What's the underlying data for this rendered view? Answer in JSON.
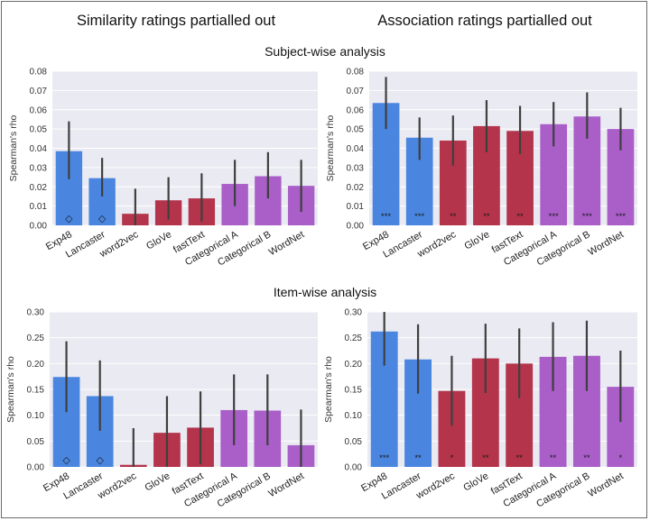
{
  "headers": {
    "col_left": "Similarity ratings partialled out",
    "col_right": "Association ratings partialled out",
    "row_top": "Subject-wise analysis",
    "row_bottom": "Item-wise analysis"
  },
  "colors": {
    "blue": "#4a86e0",
    "red": "#b3344b",
    "purple": "#a95ec8",
    "panel_bg": "#eaeaf2",
    "grid": "#ffffff",
    "errorbar": "#3f3f3f"
  },
  "chart_data": [
    {
      "id": "subject-similarity",
      "type": "bar",
      "ylabel": "Spearman's rho",
      "ylim": [
        0,
        0.08
      ],
      "yticks": [
        "0.00",
        "0.01",
        "0.02",
        "0.03",
        "0.04",
        "0.05",
        "0.06",
        "0.07",
        "0.08"
      ],
      "categories": [
        "Exp48",
        "Lancaster",
        "word2vec",
        "GloVe",
        "fastText",
        "Categorical A",
        "Categorical B",
        "WordNet"
      ],
      "groups": [
        "blue",
        "blue",
        "red",
        "red",
        "red",
        "purple",
        "purple",
        "purple"
      ],
      "values": [
        0.0385,
        0.0245,
        0.006,
        0.013,
        0.014,
        0.0215,
        0.0255,
        0.0205
      ],
      "ci_low": [
        0.024,
        0.015,
        -0.002,
        0.003,
        0.002,
        0.01,
        0.014,
        0.007
      ],
      "ci_high": [
        0.054,
        0.035,
        0.019,
        0.025,
        0.027,
        0.034,
        0.038,
        0.034
      ],
      "markers": [
        "◇",
        "◇",
        "",
        "",
        "",
        "",
        "",
        ""
      ],
      "grid": true
    },
    {
      "id": "subject-association",
      "type": "bar",
      "ylabel": "Spearman's rho",
      "ylim": [
        0,
        0.08
      ],
      "yticks": [
        "0.00",
        "0.01",
        "0.02",
        "0.03",
        "0.04",
        "0.05",
        "0.06",
        "0.07",
        "0.08"
      ],
      "categories": [
        "Exp48",
        "Lancaster",
        "word2vec",
        "GloVe",
        "fastText",
        "Categorical A",
        "Categorical B",
        "WordNet"
      ],
      "groups": [
        "blue",
        "blue",
        "red",
        "red",
        "red",
        "purple",
        "purple",
        "purple"
      ],
      "values": [
        0.0635,
        0.0455,
        0.044,
        0.0515,
        0.049,
        0.0525,
        0.0565,
        0.05
      ],
      "ci_low": [
        0.05,
        0.034,
        0.031,
        0.038,
        0.037,
        0.041,
        0.045,
        0.039
      ],
      "ci_high": [
        0.077,
        0.056,
        0.057,
        0.065,
        0.062,
        0.064,
        0.069,
        0.061
      ],
      "markers": [
        "***",
        "***",
        "**",
        "**",
        "**",
        "***",
        "***",
        "***"
      ],
      "grid": true
    },
    {
      "id": "item-similarity",
      "type": "bar",
      "ylabel": "Spearman's rho",
      "ylim": [
        0,
        0.3
      ],
      "yticks": [
        "0.00",
        "0.05",
        "0.10",
        "0.15",
        "0.20",
        "0.25",
        "0.30"
      ],
      "categories": [
        "Exp48",
        "Lancaster",
        "word2vec",
        "GloVe",
        "fastText",
        "Categorical A",
        "Categorical B",
        "WordNet"
      ],
      "groups": [
        "blue",
        "blue",
        "red",
        "red",
        "red",
        "purple",
        "purple",
        "purple"
      ],
      "values": [
        0.174,
        0.137,
        0.004,
        0.066,
        0.076,
        0.11,
        0.109,
        0.042
      ],
      "ci_low": [
        0.106,
        0.07,
        -0.04,
        -0.005,
        0.005,
        0.042,
        0.042,
        -0.01
      ],
      "ci_high": [
        0.243,
        0.206,
        0.075,
        0.137,
        0.146,
        0.179,
        0.179,
        0.111
      ],
      "markers": [
        "◇",
        "◇",
        "",
        "",
        "",
        "",
        "",
        ""
      ],
      "grid": true
    },
    {
      "id": "item-association",
      "type": "bar",
      "ylabel": "Spearman's rho",
      "ylim": [
        0,
        0.3
      ],
      "yticks": [
        "0.00",
        "0.05",
        "0.10",
        "0.15",
        "0.20",
        "0.25",
        "0.30"
      ],
      "categories": [
        "Exp48",
        "Lancaster",
        "word2vec",
        "GloVe",
        "fastText",
        "Categorical A",
        "Categorical B",
        "WordNet"
      ],
      "groups": [
        "blue",
        "blue",
        "red",
        "red",
        "red",
        "purple",
        "purple",
        "purple"
      ],
      "values": [
        0.262,
        0.208,
        0.147,
        0.21,
        0.2,
        0.213,
        0.215,
        0.155
      ],
      "ci_low": [
        0.196,
        0.142,
        0.08,
        0.143,
        0.133,
        0.147,
        0.147,
        0.087
      ],
      "ci_high": [
        0.3,
        0.276,
        0.215,
        0.277,
        0.268,
        0.28,
        0.283,
        0.225
      ],
      "markers": [
        "***",
        "**",
        "*",
        "**",
        "**",
        "**",
        "**",
        "*"
      ],
      "grid": true
    }
  ]
}
